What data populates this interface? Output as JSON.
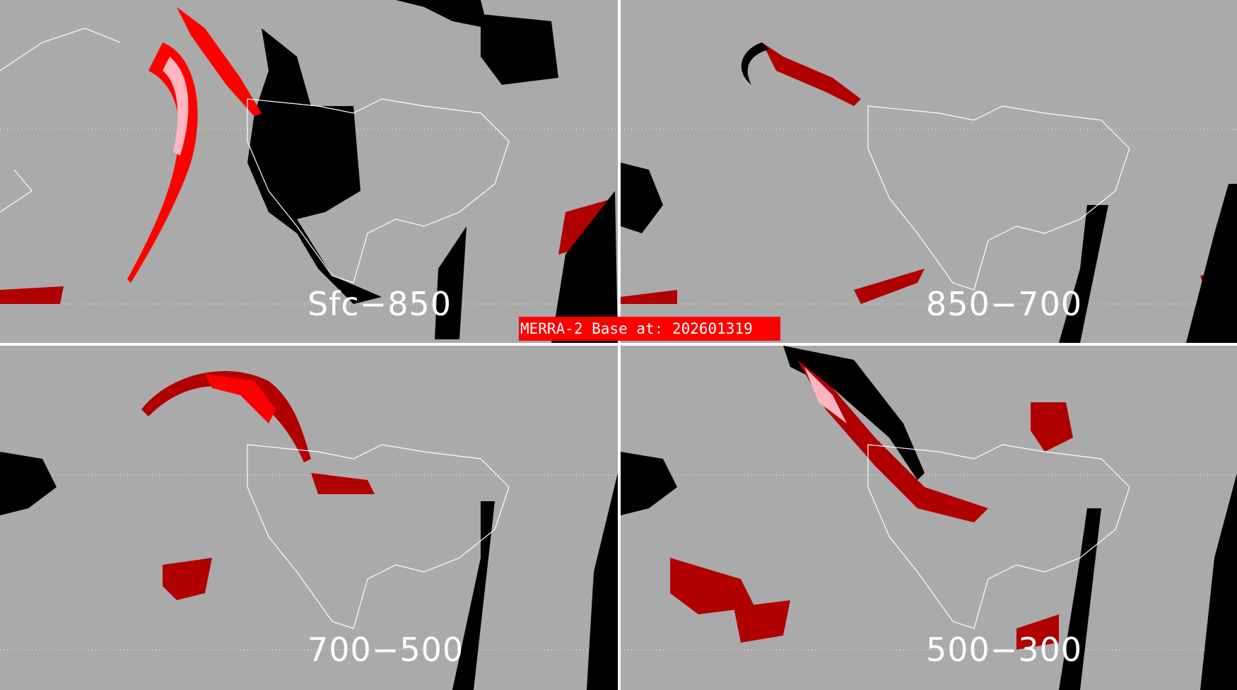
{
  "title": "MERRA-2 Base at: 202601319",
  "colors": {
    "background": "#aaaaaa",
    "black": "#000000",
    "dark_red": "#b00000",
    "red": "#ff0000",
    "pink": "#ffb6c1",
    "lines": "#ffffff"
  },
  "panels": [
    {
      "label": "Sfc−850"
    },
    {
      "label": "850−700"
    },
    {
      "label": "700−500"
    },
    {
      "label": "500−300"
    }
  ]
}
